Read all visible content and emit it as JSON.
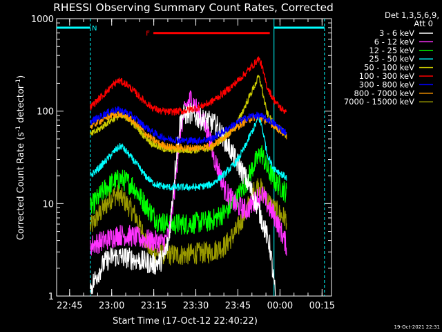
{
  "page": {
    "background": "#000000",
    "foreground": "#ffffff"
  },
  "chart_data": {
    "type": "line",
    "title": "RHESSI Observing Summary Count Rates, Corrected",
    "xlabel": "Start Time (17-Oct-12 22:40:22)",
    "ylabel": "Corrected Count Rate (s⁻¹ detector⁻¹)",
    "ylabel_parts": {
      "main": "Corrected Count Rate (s",
      "exp1": "-1",
      "mid": " detector",
      "exp2": "-1",
      "end": ")"
    },
    "x_unit": "minutes after 22:40:22",
    "xlim": [
      0,
      98
    ],
    "ylim": [
      1,
      1000
    ],
    "y_scale": "log",
    "grid": false,
    "legend_position": "top-right (outside plot)",
    "legend_header": [
      "Det 1,3,5,6,9,",
      "Att 0"
    ],
    "footer_timestamp": "19-Oct-2021 22:31",
    "x_ticks": [
      {
        "label": "22:45",
        "x": 4.63
      },
      {
        "label": "23:00",
        "x": 19.63
      },
      {
        "label": "23:15",
        "x": 34.63
      },
      {
        "label": "23:30",
        "x": 49.63
      },
      {
        "label": "23:45",
        "x": 64.63
      },
      {
        "label": "00:00",
        "x": 79.63
      },
      {
        "label": "00:15",
        "x": 94.63
      }
    ],
    "y_ticks": [
      {
        "label": "1",
        "y": 1
      },
      {
        "label": "10",
        "y": 10
      },
      {
        "label": "100",
        "y": 100
      },
      {
        "label": "1000",
        "y": 1000
      }
    ],
    "series": [
      {
        "name": "3 - 6 keV",
        "color": "#ffffff",
        "x": [
          12.0,
          14.0,
          17.0,
          20.0,
          25.0,
          30.0,
          35.0,
          38.0,
          40.0,
          42.0,
          44.0,
          45.0,
          48.0,
          50.0,
          54.0,
          57.0,
          60.0,
          62.0,
          64.0,
          67.0,
          70.0,
          73.0,
          76.0,
          78.0
        ],
        "y": [
          1.2,
          1.6,
          2.3,
          2.7,
          2.6,
          2.4,
          2.2,
          2.5,
          4.0,
          20.0,
          75.0,
          90.0,
          95.0,
          85.0,
          78.0,
          70.0,
          48.0,
          38.0,
          29.0,
          20.0,
          12.5,
          7.0,
          3.5,
          1.0
        ]
      },
      {
        "name": "6 - 12 keV",
        "color": "#ff33ff",
        "x": [
          12.0,
          17.0,
          22.0,
          26.0,
          30.0,
          35.0,
          38.0,
          40.0,
          42.0,
          44.0,
          46.0,
          48.0,
          50.0,
          54.0,
          56.0,
          58.0,
          60.0,
          64.0,
          68.0,
          71.0,
          73.0,
          75.0,
          78.0,
          80.0,
          82.0
        ],
        "y": [
          3.5,
          4.0,
          4.6,
          4.5,
          4.2,
          3.9,
          3.8,
          4.5,
          14.0,
          60.0,
          110.0,
          140.0,
          105.0,
          60.0,
          32.0,
          22.0,
          14.0,
          9.5,
          8.5,
          11.0,
          13.0,
          10.0,
          7.0,
          5.0,
          3.5
        ]
      },
      {
        "name": "12 - 25 keV",
        "color": "#00ff00",
        "x": [
          12.0,
          17.0,
          20.0,
          23.0,
          27.0,
          30.0,
          33.0,
          36.0,
          40.0,
          45.0,
          50.0,
          55.0,
          60.0,
          64.0,
          68.0,
          70.0,
          72.0,
          73.0,
          75.0,
          78.0,
          80.0,
          82.0
        ],
        "y": [
          9.0,
          14.0,
          17.0,
          18.5,
          16.0,
          11.5,
          8.5,
          6.5,
          6.0,
          6.0,
          6.2,
          6.5,
          8.0,
          11.0,
          18.0,
          25.0,
          32.0,
          36.0,
          24.0,
          17.0,
          15.0,
          13.0
        ]
      },
      {
        "name": "25 - 50 keV",
        "color": "#00ffff",
        "x": [
          12.0,
          15.0,
          18.0,
          21.0,
          23.0,
          25.0,
          28.0,
          31.0,
          34.0,
          37.0,
          40.0,
          45.0,
          50.0,
          55.0,
          60.0,
          64.0,
          67.0,
          69.0,
          71.0,
          72.0,
          73.0,
          74.0,
          75.0,
          77.0,
          80.0,
          82.0
        ],
        "y": [
          20.0,
          24.0,
          30.0,
          38.0,
          42.0,
          36.0,
          28.0,
          21.0,
          17.0,
          15.5,
          15.0,
          15.0,
          15.0,
          16.0,
          21.0,
          28.0,
          40.0,
          55.0,
          72.0,
          85.0,
          72.0,
          52.0,
          35.0,
          25.0,
          21.0,
          19.0
        ]
      },
      {
        "name": "50 - 100 keV",
        "color": "#cccc00",
        "x": [
          12.0,
          15.0,
          18.0,
          20.0,
          22.0,
          25.0,
          28.0,
          31.0,
          34.0,
          37.0,
          40.0,
          45.0,
          50.0,
          55.0,
          60.0,
          64.0,
          67.0,
          69.0,
          71.0,
          72.0,
          73.0,
          74.0,
          75.0,
          77.0,
          80.0,
          82.0
        ],
        "y": [
          55.0,
          63.0,
          75.0,
          82.0,
          88.0,
          85.0,
          70.0,
          55.0,
          45.0,
          40.0,
          38.0,
          38.0,
          38.0,
          40.0,
          52.0,
          70.0,
          110.0,
          150.0,
          200.0,
          235.0,
          190.0,
          130.0,
          95.0,
          75.0,
          62.0,
          55.0
        ]
      },
      {
        "name": "100 - 300 keV",
        "color": "#ff0000",
        "x": [
          12.0,
          15.0,
          18.0,
          20.0,
          22.0,
          25.0,
          28.0,
          31.0,
          34.0,
          37.0,
          40.0,
          45.0,
          50.0,
          55.0,
          58.0,
          62.0,
          66.0,
          69.0,
          71.0,
          72.0,
          73.0,
          74.0,
          75.0,
          77.0,
          79.0,
          81.0,
          82.0
        ],
        "y": [
          110.0,
          135.0,
          165.0,
          190.0,
          215.0,
          195.0,
          160.0,
          130.0,
          110.0,
          100.0,
          98.0,
          100.0,
          108.0,
          125.0,
          145.0,
          180.0,
          235.0,
          290.0,
          340.0,
          370.0,
          320.0,
          240.0,
          185.0,
          140.0,
          115.0,
          100.0,
          105.0
        ]
      },
      {
        "name": "300 - 800 keV",
        "color": "#0000ff",
        "x": [
          12.0,
          15.0,
          18.0,
          20.0,
          22.0,
          25.0,
          28.0,
          31.0,
          34.0,
          37.0,
          40.0,
          45.0,
          50.0,
          55.0,
          58.0,
          62.0,
          66.0,
          69.0,
          71.0,
          73.0,
          75.0,
          78.0,
          80.0,
          82.0
        ],
        "y": [
          76.0,
          86.0,
          96.0,
          102.0,
          103.0,
          97.0,
          84.0,
          70.0,
          60.0,
          53.0,
          50.0,
          48.0,
          48.0,
          50.0,
          56.0,
          68.0,
          80.0,
          88.0,
          90.0,
          88.0,
          82.0,
          72.0,
          64.0,
          58.0
        ]
      },
      {
        "name": "800 - 7000 keV",
        "color": "#ff9900",
        "x": [
          12.0,
          15.0,
          18.0,
          20.0,
          22.0,
          25.0,
          28.0,
          31.0,
          34.0,
          37.0,
          40.0,
          45.0,
          50.0,
          55.0,
          58.0,
          62.0,
          66.0,
          69.0,
          71.0,
          73.0,
          75.0,
          78.0,
          80.0,
          82.0
        ],
        "y": [
          68.0,
          77.0,
          86.0,
          91.0,
          93.0,
          88.0,
          74.0,
          60.0,
          50.0,
          44.0,
          41.0,
          40.0,
          40.0,
          42.0,
          48.0,
          60.0,
          73.0,
          83.0,
          86.0,
          84.0,
          78.0,
          68.0,
          60.0,
          54.0
        ]
      },
      {
        "name": "7000 - 15000 keV",
        "color": "#999900",
        "x": [
          12.0,
          15.0,
          18.0,
          20.0,
          22.0,
          25.0,
          28.0,
          31.0,
          34.0,
          37.0,
          40.0,
          45.0,
          50.0,
          55.0,
          60.0,
          64.0,
          68.0,
          70.0,
          72.0,
          75.0,
          78.0,
          80.0,
          82.0
        ],
        "y": [
          5.5,
          7.5,
          10.0,
          12.0,
          12.5,
          10.0,
          7.5,
          4.5,
          3.0,
          2.9,
          2.8,
          2.8,
          2.9,
          3.0,
          3.5,
          5.0,
          9.0,
          13.0,
          16.0,
          11.0,
          8.5,
          7.5,
          6.8
        ]
      }
    ],
    "annotations": [
      {
        "type": "bar",
        "label": "N",
        "color": "#00ffff",
        "segments": [
          [
            0,
            12
          ],
          [
            77.5,
            95.5
          ]
        ],
        "y": 800
      },
      {
        "type": "bar",
        "label": "F",
        "color": "#ff0000",
        "segments": [
          [
            34.5,
            76
          ]
        ],
        "y": 700
      },
      {
        "type": "vline",
        "color": "#00ffff",
        "style": "dashed",
        "x": 12
      },
      {
        "type": "vline",
        "color": "#00ffff",
        "style": "solid",
        "x": 77.5
      },
      {
        "type": "vline",
        "color": "#00ffff",
        "style": "dashed",
        "x": 95.5
      }
    ]
  }
}
